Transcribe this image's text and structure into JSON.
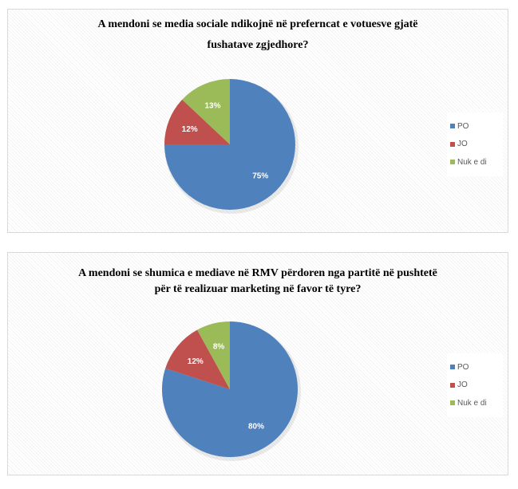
{
  "chart_data": [
    {
      "type": "pie",
      "title_lines": [
        "A mendoni  se media sociale ndikojnë  në preferncat  e votuesve gjatë",
        "fushatave zgjedhore?"
      ],
      "categories": [
        "PO",
        "JO",
        "Nuk e di"
      ],
      "values": [
        75,
        12,
        13
      ],
      "labels": [
        "75%",
        "12%",
        "13%"
      ],
      "legend": "right"
    },
    {
      "type": "pie",
      "title_lines": [
        "A mendoni se shumica e mediave në RMV përdoren nga partitë në pushtetë",
        "për të realizuar marketing në favor të tyre?"
      ],
      "categories": [
        "PO",
        "JO",
        "Nuk e di"
      ],
      "values": [
        80,
        12,
        8
      ],
      "labels": [
        "80%",
        "12%",
        "8%"
      ],
      "legend": "right"
    }
  ],
  "colors": [
    "#4f81bd",
    "#c0504d",
    "#9bbb59"
  ]
}
